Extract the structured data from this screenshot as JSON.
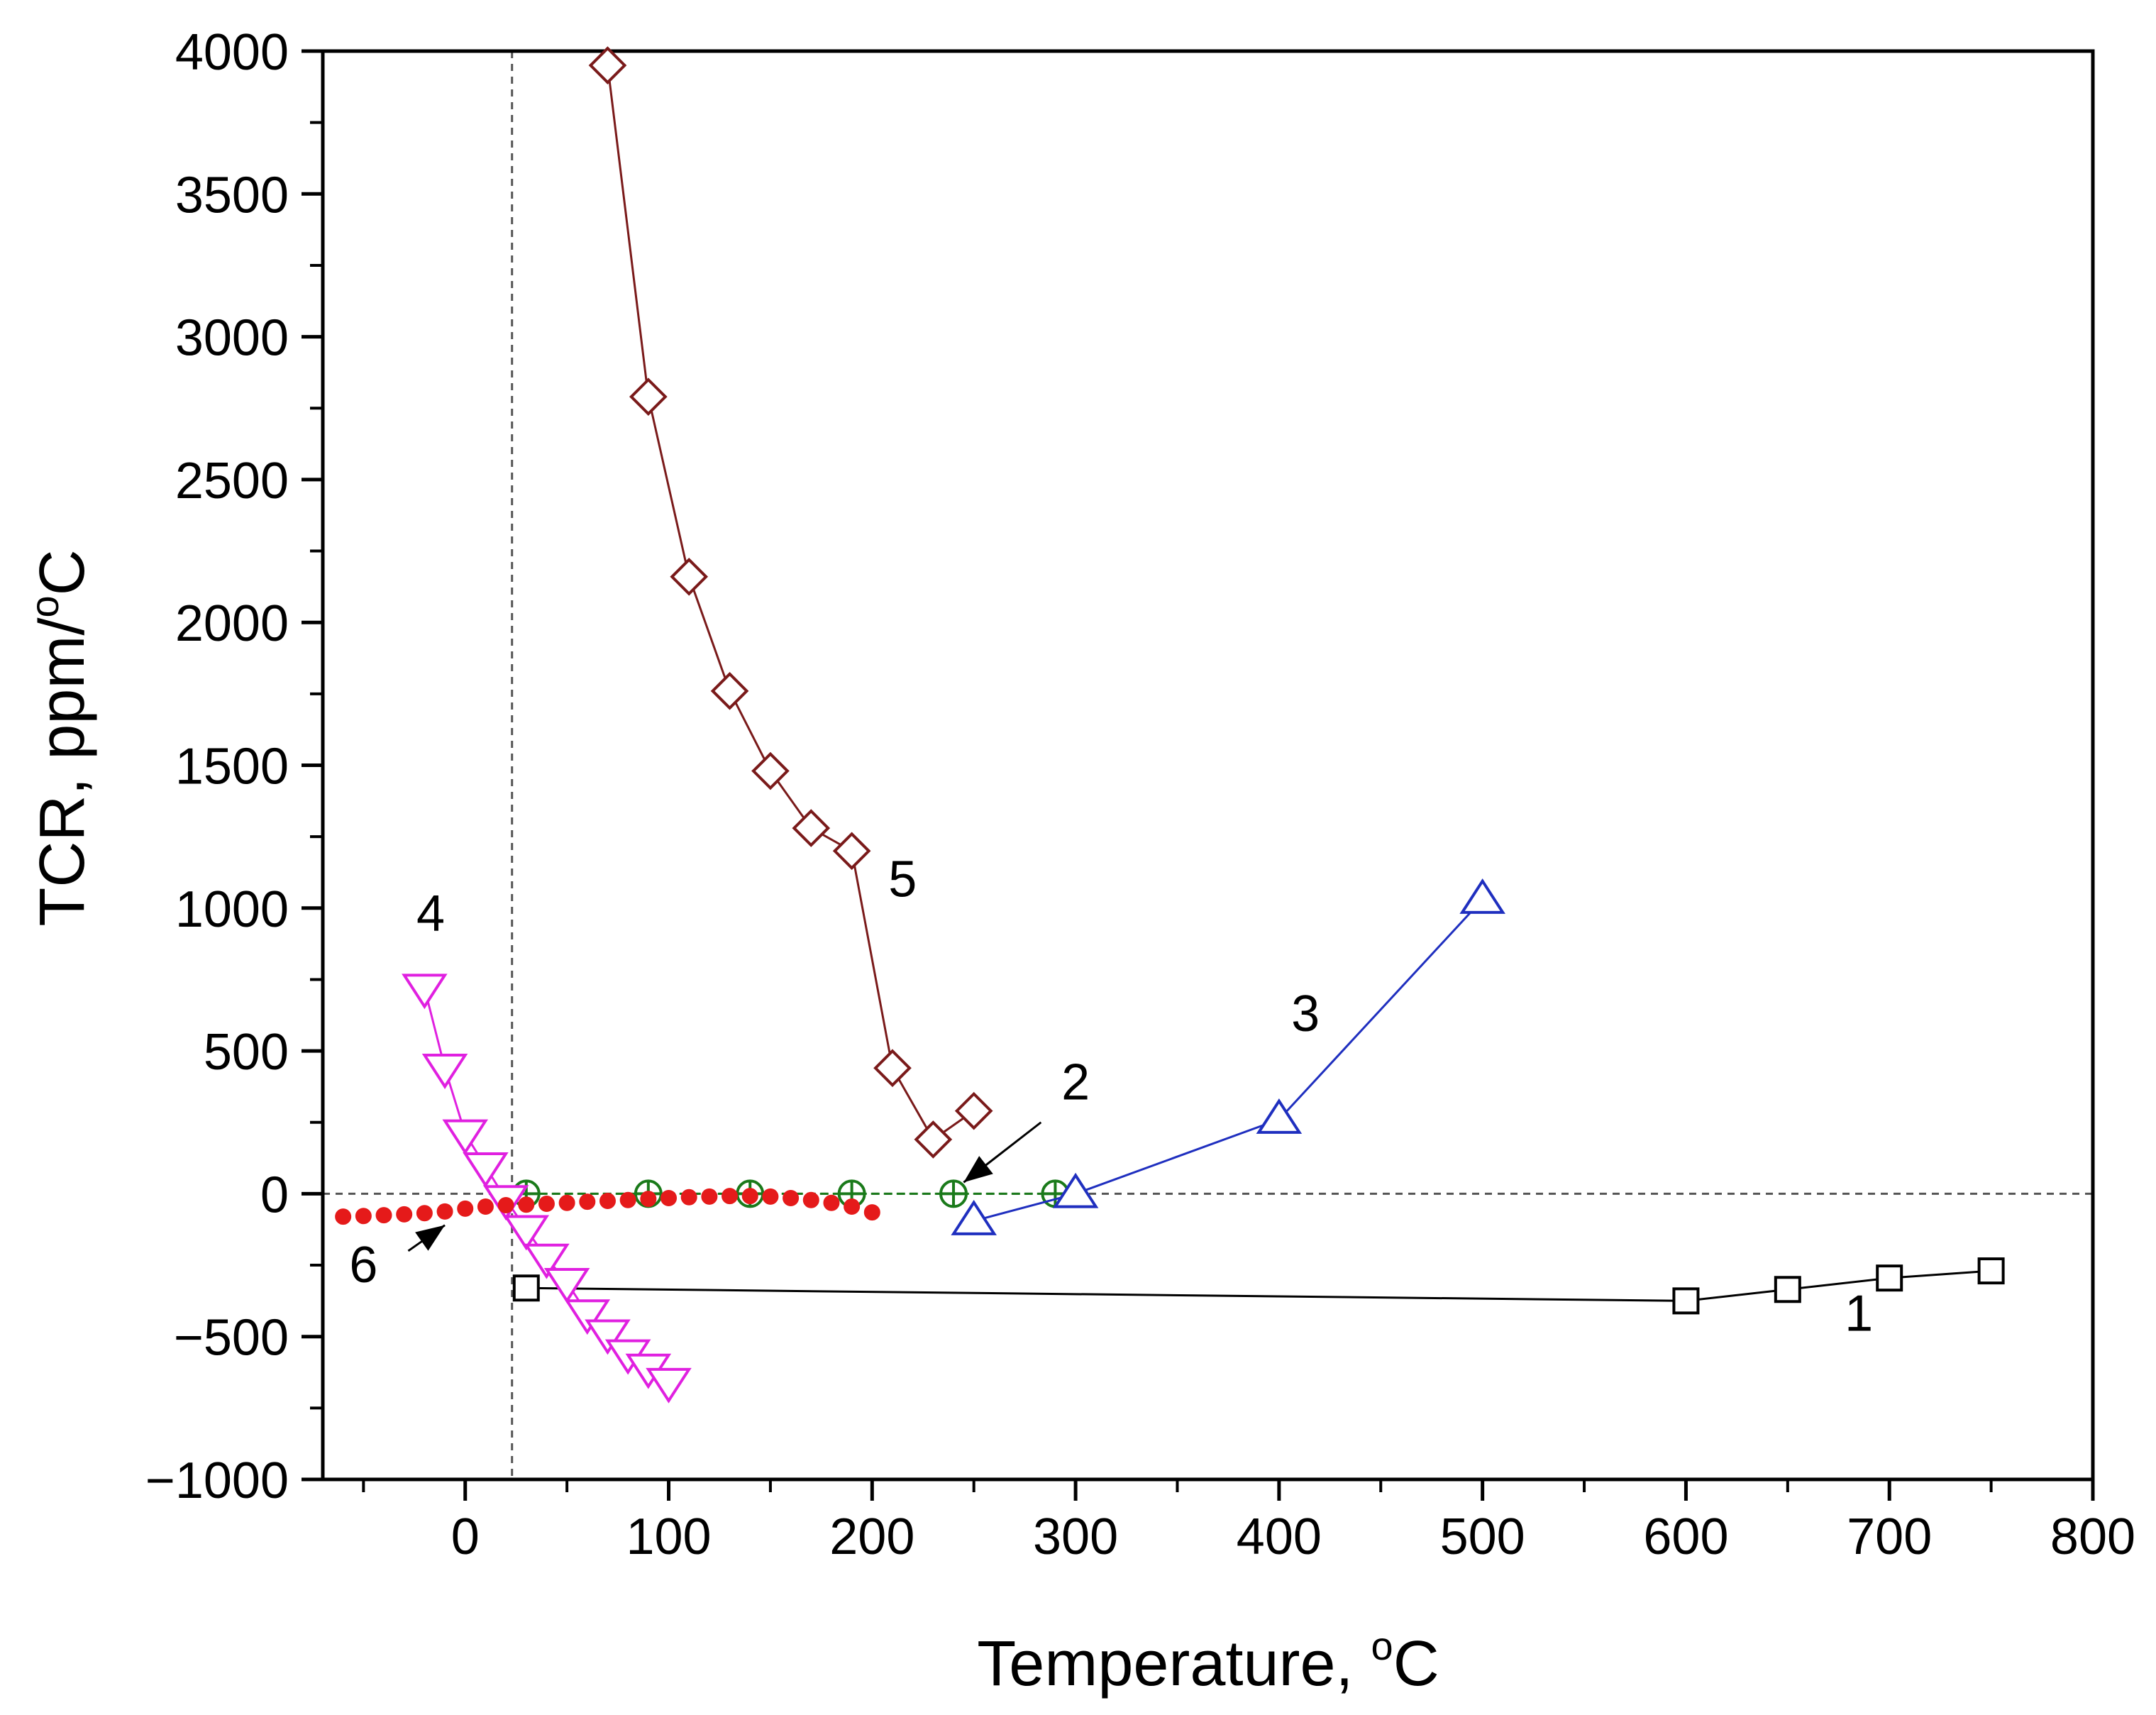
{
  "chart_data": {
    "type": "line",
    "title": "",
    "xlabel": "Temperature, °C",
    "ylabel": "TCR, ppm/°C",
    "xlabel_parts": {
      "main": "Temperature, ",
      "sup": "o",
      "unit": "C"
    },
    "ylabel_parts": {
      "main": "TCR, ppm/",
      "sup": "o",
      "unit": "C"
    },
    "xlim": [
      -70,
      800
    ],
    "ylim": [
      -1000,
      4000
    ],
    "xticks": [
      0,
      100,
      200,
      300,
      400,
      500,
      600,
      700,
      800
    ],
    "yticks": [
      -1000,
      -500,
      0,
      500,
      1000,
      1500,
      2000,
      2500,
      3000,
      3500,
      4000
    ],
    "xtick_labels": [
      "0",
      "100",
      "200",
      "300",
      "400",
      "500",
      "600",
      "700",
      "800"
    ],
    "ytick_labels": [
      "−1000",
      "−500",
      "0",
      "500",
      "1000",
      "1500",
      "2000",
      "2500",
      "3000",
      "3500",
      "4000"
    ],
    "reference_lines": {
      "vertical_x": 23,
      "horizontal_y": 0
    },
    "grid": false,
    "series": [
      {
        "name": "1",
        "marker": "square",
        "color": "#000000",
        "x": [
          30,
          600,
          650,
          700,
          750
        ],
        "y": [
          -330,
          -375,
          -335,
          -295,
          -270
        ]
      },
      {
        "name": "2",
        "marker": "circle-plus",
        "color": "#1a7a1a",
        "x": [
          30,
          90,
          140,
          190,
          240,
          290
        ],
        "y": [
          0,
          0,
          0,
          0,
          0,
          0
        ]
      },
      {
        "name": "3",
        "marker": "triangle-up",
        "color": "#1f2fbf",
        "x": [
          250,
          300,
          400,
          500
        ],
        "y": [
          -95,
          0,
          260,
          1030
        ]
      },
      {
        "name": "4",
        "marker": "triangle-down",
        "color": "#e020e0",
        "x": [
          -20,
          -10,
          0,
          10,
          20,
          30,
          40,
          50,
          60,
          70,
          80,
          90,
          100
        ],
        "y": [
          720,
          440,
          210,
          95,
          -20,
          -125,
          -225,
          -310,
          -420,
          -490,
          -560,
          -610,
          -660
        ]
      },
      {
        "name": "5",
        "marker": "diamond",
        "color": "#7a1a1a",
        "x": [
          70,
          90,
          110,
          130,
          150,
          170,
          190,
          210,
          230,
          250
        ],
        "y": [
          3950,
          2790,
          2160,
          1760,
          1480,
          1280,
          1200,
          440,
          190,
          290
        ]
      },
      {
        "name": "6",
        "marker": "filled-circle",
        "color": "#e51a1a",
        "x": [
          -60,
          -50,
          -40,
          -30,
          -20,
          -10,
          0,
          10,
          20,
          30,
          40,
          50,
          60,
          70,
          80,
          90,
          100,
          110,
          120,
          130,
          140,
          150,
          160,
          170,
          180,
          190,
          200
        ],
        "y": [
          -80,
          -78,
          -75,
          -72,
          -68,
          -62,
          -52,
          -45,
          -40,
          -38,
          -35,
          -32,
          -28,
          -25,
          -22,
          -18,
          -15,
          -12,
          -10,
          -8,
          -8,
          -10,
          -15,
          -22,
          -32,
          -45,
          -65
        ]
      }
    ],
    "annotations": [
      {
        "text": "1",
        "x": 685,
        "y": -480
      },
      {
        "text": "2",
        "x": 300,
        "y": 330
      },
      {
        "text": "3",
        "x": 413,
        "y": 570
      },
      {
        "text": "4",
        "x": -17,
        "y": 920
      },
      {
        "text": "5",
        "x": 215,
        "y": 1040
      },
      {
        "text": "6",
        "x": -50,
        "y": -310
      }
    ],
    "arrows": [
      {
        "label": "2",
        "from": [
          283,
          250
        ],
        "to": [
          245,
          40
        ]
      },
      {
        "label": "6",
        "from": [
          -28,
          -200
        ],
        "to": [
          -10,
          -110
        ]
      }
    ]
  }
}
